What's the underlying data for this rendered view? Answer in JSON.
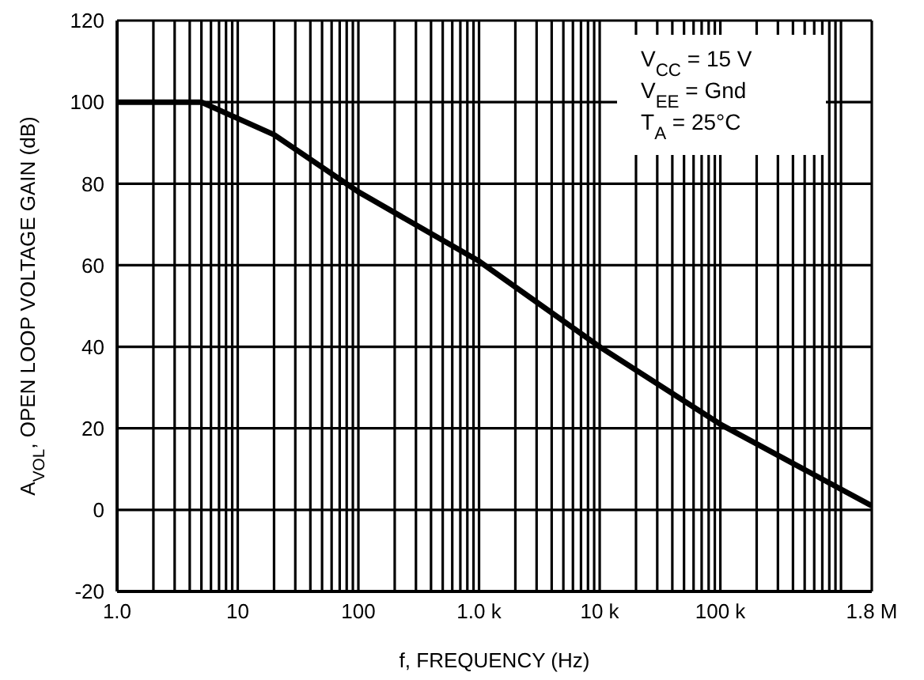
{
  "chart_data": {
    "type": "line",
    "xlabel": "f, FREQUENCY (Hz)",
    "ylabel": "A$_{VOL}$, OPEN LOOP VOLTAGE GAIN (dB)",
    "annotations": [
      "V$_{CC}$ = 15 V",
      "V$_{EE}$ = Gnd",
      "T$_{A}$ = 25°C"
    ],
    "log": "x",
    "grid": true,
    "marker": "none",
    "line_style": "solid",
    "xlim": [
      1,
      1800000
    ],
    "xticks": [
      {
        "value": 1,
        "label": "1.0"
      },
      {
        "value": 2,
        "label": null
      },
      {
        "value": 3,
        "label": null
      },
      {
        "value": 4,
        "label": null
      },
      {
        "value": 5,
        "label": null
      },
      {
        "value": 6,
        "label": null
      },
      {
        "value": 7,
        "label": null
      },
      {
        "value": 8,
        "label": null
      },
      {
        "value": 9,
        "label": null
      },
      {
        "value": 10,
        "label": "10"
      },
      {
        "value": 20,
        "label": null
      },
      {
        "value": 30,
        "label": null
      },
      {
        "value": 40,
        "label": null
      },
      {
        "value": 50,
        "label": null
      },
      {
        "value": 60,
        "label": null
      },
      {
        "value": 70,
        "label": null
      },
      {
        "value": 80,
        "label": null
      },
      {
        "value": 90,
        "label": null
      },
      {
        "value": 100,
        "label": "100"
      },
      {
        "value": 200,
        "label": null
      },
      {
        "value": 300,
        "label": null
      },
      {
        "value": 400,
        "label": null
      },
      {
        "value": 500,
        "label": null
      },
      {
        "value": 600,
        "label": null
      },
      {
        "value": 700,
        "label": null
      },
      {
        "value": 800,
        "label": null
      },
      {
        "value": 900,
        "label": null
      },
      {
        "value": 1000,
        "label": "1.0 k"
      },
      {
        "value": 2000,
        "label": null
      },
      {
        "value": 3000,
        "label": null
      },
      {
        "value": 4000,
        "label": null
      },
      {
        "value": 5000,
        "label": null
      },
      {
        "value": 6000,
        "label": null
      },
      {
        "value": 7000,
        "label": null
      },
      {
        "value": 8000,
        "label": null
      },
      {
        "value": 9000,
        "label": null
      },
      {
        "value": 10000,
        "label": "10 k"
      },
      {
        "value": 20000,
        "label": null
      },
      {
        "value": 30000,
        "label": null
      },
      {
        "value": 40000,
        "label": null
      },
      {
        "value": 50000,
        "label": null
      },
      {
        "value": 60000,
        "label": null
      },
      {
        "value": 70000,
        "label": null
      },
      {
        "value": 80000,
        "label": null
      },
      {
        "value": 90000,
        "label": null
      },
      {
        "value": 100000,
        "label": "100 k"
      },
      {
        "value": 200000,
        "label": null
      },
      {
        "value": 300000,
        "label": null
      },
      {
        "value": 400000,
        "label": null
      },
      {
        "value": 500000,
        "label": null
      },
      {
        "value": 600000,
        "label": null
      },
      {
        "value": 700000,
        "label": null
      },
      {
        "value": 800000,
        "label": null
      },
      {
        "value": 900000,
        "label": null
      },
      {
        "value": 1000000,
        "label": null
      },
      {
        "value": 1800000,
        "label": "1.8 M"
      }
    ],
    "ylim": [
      -20,
      120
    ],
    "yticks": [
      -20,
      0,
      20,
      40,
      60,
      80,
      100,
      120
    ],
    "x": [
      1,
      5,
      20,
      100,
      1000,
      10000,
      100000,
      1800000
    ],
    "series": [
      {
        "color": "#000000",
        "values": [
          100,
          100,
          92,
          78,
          61,
          40,
          21,
          1
        ]
      }
    ]
  }
}
